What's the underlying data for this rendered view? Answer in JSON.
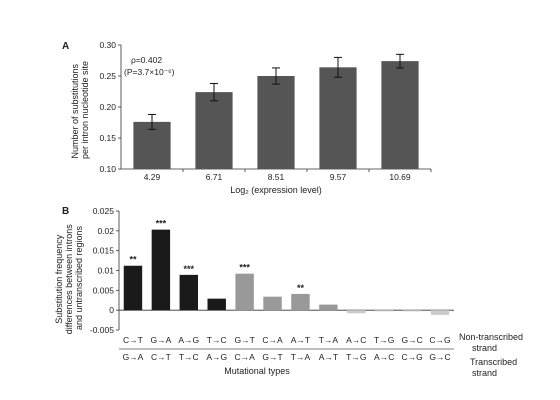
{
  "chart_data": [
    {
      "panel": "A",
      "type": "bar",
      "categories": [
        "4.29",
        "6.71",
        "8.51",
        "9.57",
        "10.69"
      ],
      "values": [
        0.176,
        0.224,
        0.25,
        0.264,
        0.274
      ],
      "errors": [
        0.012,
        0.014,
        0.013,
        0.016,
        0.011
      ],
      "ylabel_line1": "Number of substitutions",
      "ylabel_line2": "per intron nucleotide site",
      "xlabel": "Log₂ (expression level)",
      "ylim": [
        0.1,
        0.3
      ],
      "yticks": [
        "0.10",
        "0.15",
        "0.20",
        "0.25",
        "0.30"
      ],
      "annotation_rho": "ρ=0.402",
      "annotation_p": "(P=3.7×10⁻⁶)",
      "bar_color": "#555555"
    },
    {
      "panel": "B",
      "type": "bar",
      "top_labels": [
        "C→T",
        "G→A",
        "A→G",
        "T→C",
        "G→T",
        "C→A",
        "A→T",
        "T→A",
        "A→C",
        "T→G",
        "G→C",
        "C→G"
      ],
      "bottom_labels": [
        "G→A",
        "C→T",
        "T→C",
        "A→G",
        "C→A",
        "G→T",
        "T→A",
        "A→T",
        "T→G",
        "A→C",
        "C→G",
        "G→C"
      ],
      "values": [
        0.0112,
        0.0203,
        0.0089,
        0.0029,
        0.0092,
        0.0034,
        0.0041,
        0.0014,
        -0.0008,
        -0.0003,
        -0.0003,
        -0.0012
      ],
      "significance": [
        "**",
        "***",
        "***",
        "",
        "***",
        "",
        "**",
        "",
        "",
        "",
        "",
        ""
      ],
      "bar_colors": [
        "#1a1a1a",
        "#1a1a1a",
        "#1a1a1a",
        "#1a1a1a",
        "#999999",
        "#999999",
        "#999999",
        "#999999",
        "#cccccc",
        "#cccccc",
        "#cccccc",
        "#cccccc"
      ],
      "ylabel_line1": "Substitution frequency",
      "ylabel_line2": "differences between introns",
      "ylabel_line3": "and untranscribed regions",
      "xlabel": "Mutational types",
      "ylim": [
        -0.005,
        0.025
      ],
      "yticks": [
        "-0.005",
        "0",
        "0.005",
        "0.01",
        "0.015",
        "0.02",
        "0.025"
      ],
      "strand_top_line1": "Non-transcribed",
      "strand_top_line2": "strand",
      "strand_bottom_line1": "Transcribed",
      "strand_bottom_line2": "strand"
    }
  ]
}
